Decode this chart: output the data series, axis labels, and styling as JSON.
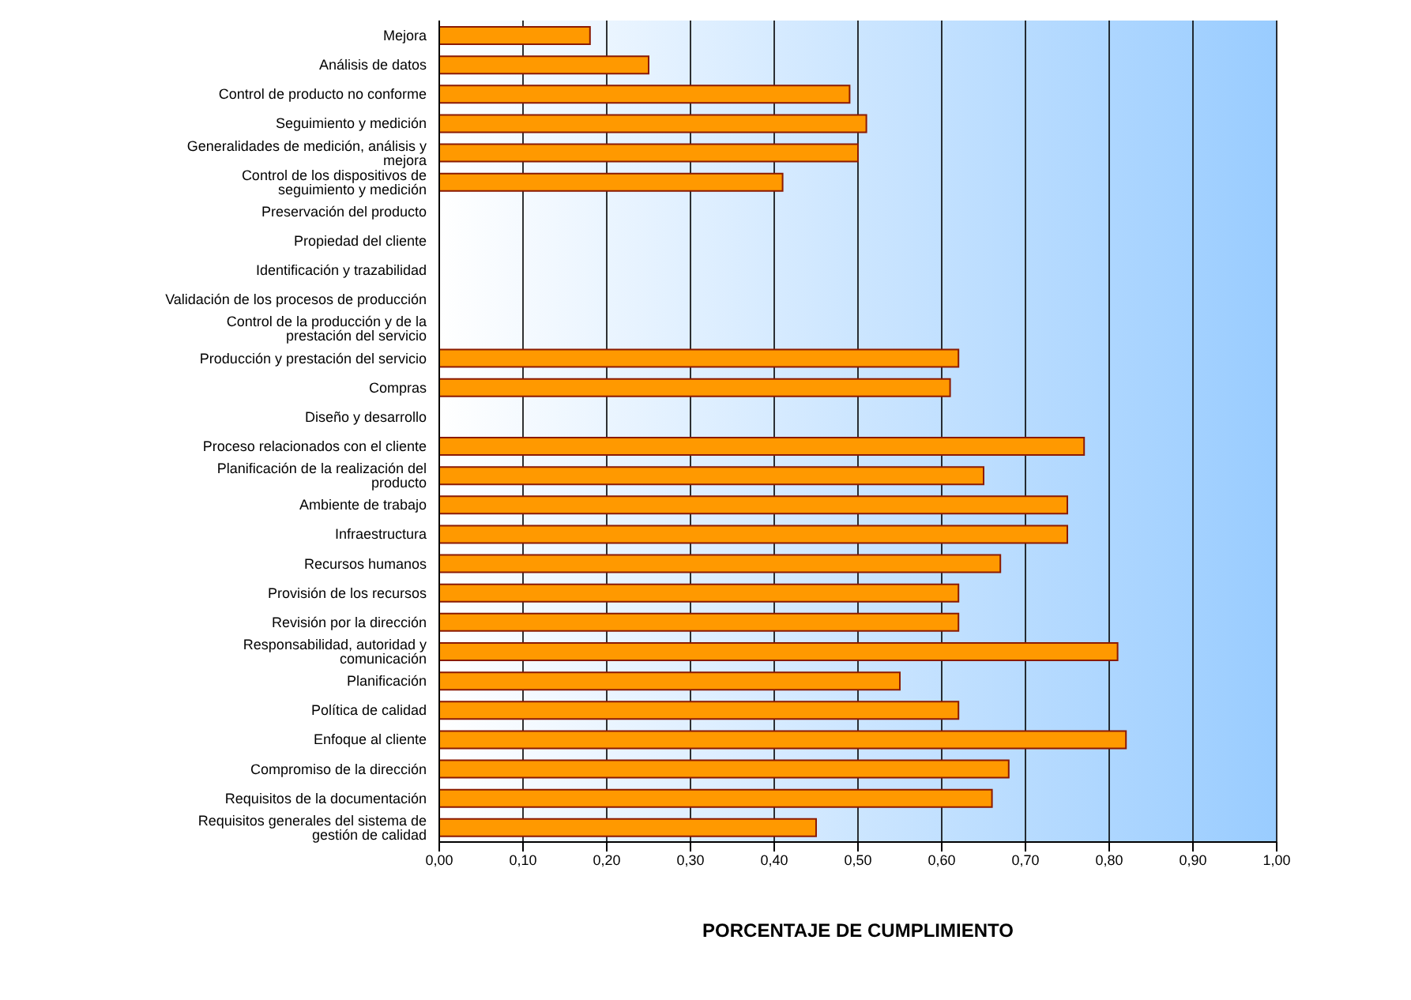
{
  "chart_data": {
    "type": "bar",
    "orientation": "horizontal",
    "xlabel": "PORCENTAJE DE CUMPLIMIENTO",
    "categories": [
      "Mejora",
      "Análisis de datos",
      "Control de producto no conforme",
      "Seguimiento y medición",
      "Generalidades de medición, análisis y mejora",
      "Control de los dispositivos de seguimiento y medición",
      "Preservación del producto",
      "Propiedad del cliente",
      "Identificación y trazabilidad",
      "Validación de los procesos de producción",
      "Control de la producción y de la prestación del servicio",
      "Producción y prestación del servicio",
      "Compras",
      "Diseño y desarrollo",
      "Proceso relacionados con el cliente",
      "Planificación de la realización del producto",
      "Ambiente de trabajo",
      "Infraestructura",
      "Recursos humanos",
      "Provisión de los recursos",
      "Revisión por la dirección",
      "Responsabilidad, autoridad y comunicación",
      "Planificación",
      "Política de calidad",
      "Enfoque al cliente",
      "Compromiso de la dirección",
      "Requisitos de la documentación",
      "Requisitos generales del sistema de gestión de calidad"
    ],
    "values": [
      0.18,
      0.25,
      0.49,
      0.51,
      0.5,
      0.41,
      null,
      null,
      null,
      null,
      null,
      0.62,
      0.61,
      null,
      0.77,
      0.65,
      0.75,
      0.75,
      0.67,
      0.62,
      0.62,
      0.81,
      0.55,
      0.62,
      0.82,
      0.68,
      0.66,
      0.45
    ],
    "color": "#ff9900",
    "xlim": [
      0,
      1
    ],
    "xticks": [
      {
        "value": 0,
        "label": "0,00"
      },
      {
        "value": 0.1,
        "label": "0,10"
      },
      {
        "value": 0.2,
        "label": "0,20"
      },
      {
        "value": 0.3,
        "label": "0,30"
      },
      {
        "value": 0.4,
        "label": "0,40"
      },
      {
        "value": 0.5,
        "label": "0,50"
      },
      {
        "value": 0.6,
        "label": "0,60"
      },
      {
        "value": 0.7,
        "label": "0,70"
      },
      {
        "value": 0.8,
        "label": "0,80"
      },
      {
        "value": 0.9,
        "label": "0,90"
      },
      {
        "value": 1,
        "label": "1,00"
      }
    ],
    "grid": "x",
    "legend": false
  }
}
